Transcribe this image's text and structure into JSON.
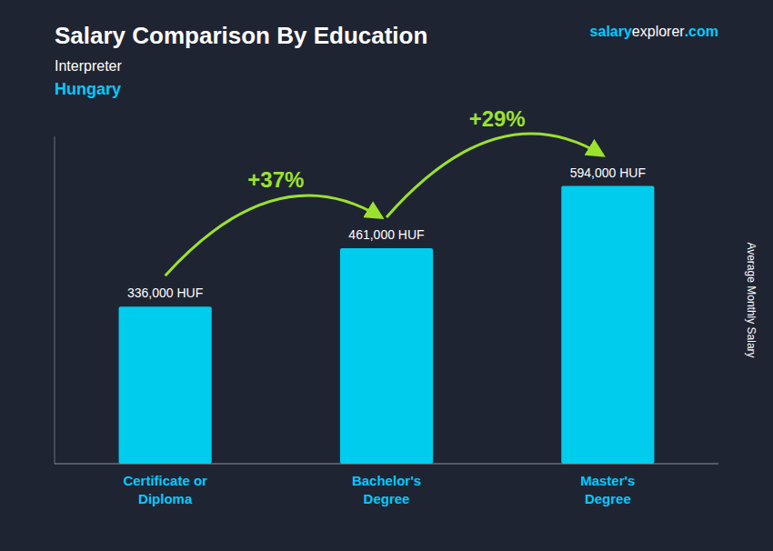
{
  "chart_data": {
    "type": "bar",
    "title": "Salary Comparison By Education",
    "subtitle": [
      "Interpreter",
      "Hungary"
    ],
    "brand": [
      "salary",
      "explorer",
      ".com"
    ],
    "ylabel": "Average Monthly Salary",
    "categories": [
      "Certificate or\nDiploma",
      "Bachelor's\nDegree",
      "Master's\nDegree"
    ],
    "values": [
      336000,
      461000,
      594000
    ],
    "value_labels": [
      "336,000 HUF",
      "461,000 HUF",
      "594,000 HUF"
    ],
    "data_labels": true,
    "annotations": [
      "+37%",
      "+29%"
    ],
    "color": "#00ccee",
    "ylim": [
      0,
      700000
    ],
    "grid": false,
    "tick_labels": "x"
  }
}
